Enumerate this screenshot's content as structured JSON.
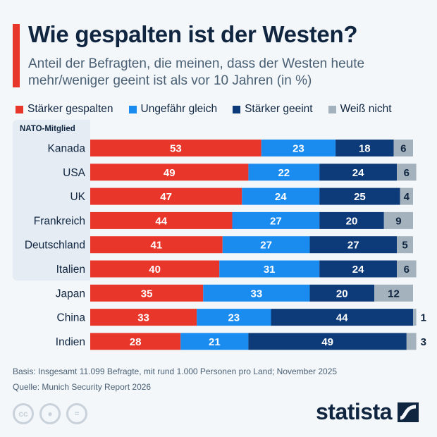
{
  "title": "Wie gespalten ist der Westen?",
  "subtitle": "Anteil der Befragten, die meinen, dass der Westen heute mehr/weniger geeint ist als vor 10 Jahren (in %)",
  "group_label": "NATO-Mitglied",
  "footer": {
    "basis": "Basis: Insgesamt 11.099 Befragte, mit rund 1.000 Personen pro Land; November 2025",
    "source": "Quelle: Munich Security Report 2026"
  },
  "brand": "statista",
  "license_icons": [
    "cc-icon",
    "by-icon",
    "nd-icon"
  ],
  "chart_data": {
    "type": "bar",
    "orientation": "horizontal",
    "stacked": true,
    "title": "Wie gespalten ist der Westen?",
    "legend_position": "top",
    "xlim": [
      0,
      100
    ],
    "grid": false,
    "categories": [
      "Kanada",
      "USA",
      "UK",
      "Frankreich",
      "Deutschland",
      "Italien",
      "Japan",
      "China",
      "Indien"
    ],
    "nato_members": [
      "Kanada",
      "USA",
      "UK",
      "Frankreich",
      "Deutschland",
      "Italien"
    ],
    "series": [
      {
        "name": "Stärker gespalten",
        "color": "#e8372a",
        "values": [
          53,
          49,
          47,
          44,
          41,
          40,
          35,
          33,
          28
        ]
      },
      {
        "name": "Ungefähr gleich",
        "color": "#1a8cf0",
        "values": [
          23,
          22,
          24,
          27,
          27,
          31,
          33,
          23,
          21
        ]
      },
      {
        "name": "Stärker geeint",
        "color": "#0d3b7a",
        "values": [
          18,
          24,
          25,
          20,
          27,
          24,
          20,
          44,
          49
        ]
      },
      {
        "name": "Weiß nicht",
        "color": "#a3b2bc",
        "values": [
          6,
          6,
          4,
          9,
          5,
          6,
          12,
          1,
          3
        ]
      }
    ]
  }
}
